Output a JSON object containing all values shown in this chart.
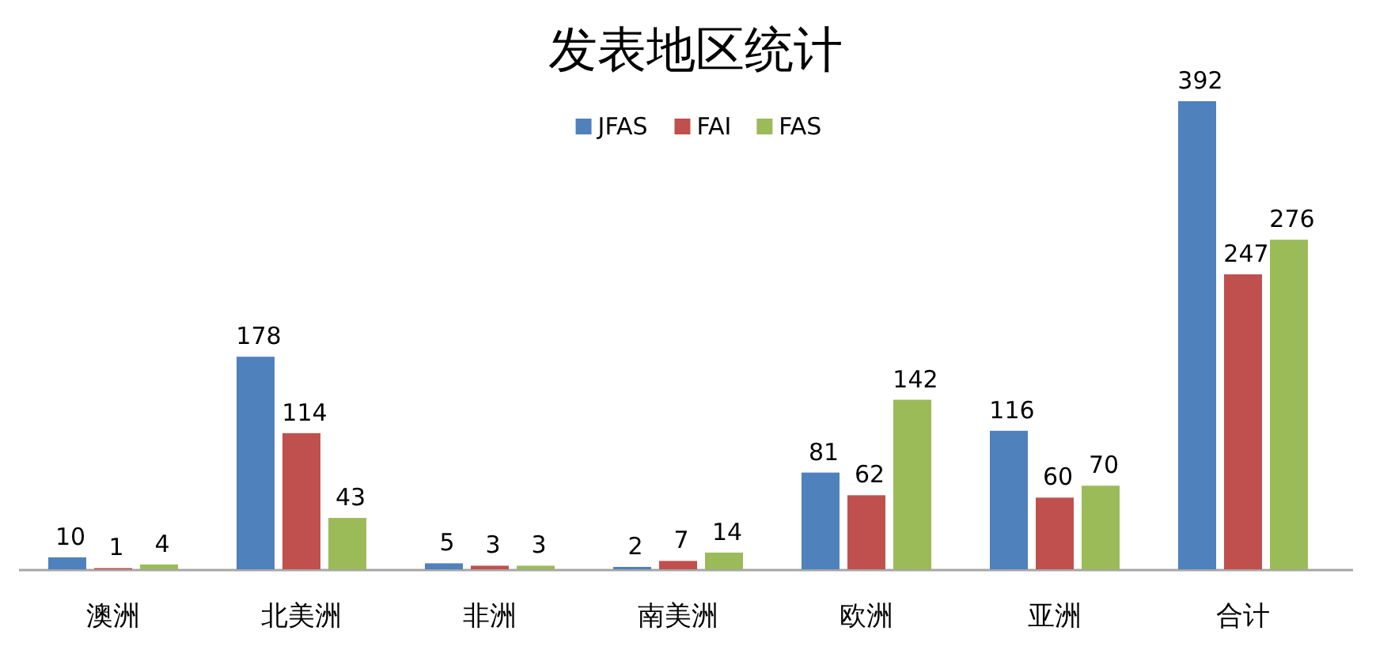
{
  "chart_data": {
    "type": "bar",
    "title": "发表地区统计",
    "categories": [
      "澳洲",
      "北美洲",
      "非洲",
      "南美洲",
      "欧洲",
      "亚洲",
      "合计"
    ],
    "series": [
      {
        "name": "JFAS",
        "color": "#4f81bd",
        "values": [
          10,
          178,
          5,
          2,
          81,
          116,
          392
        ]
      },
      {
        "name": "FAI",
        "color": "#c0504d",
        "values": [
          1,
          114,
          3,
          7,
          62,
          60,
          247
        ]
      },
      {
        "name": "FAS",
        "color": "#9bbb59",
        "values": [
          4,
          43,
          3,
          14,
          142,
          70,
          276
        ]
      }
    ],
    "data_labels": true,
    "legend": "top"
  }
}
